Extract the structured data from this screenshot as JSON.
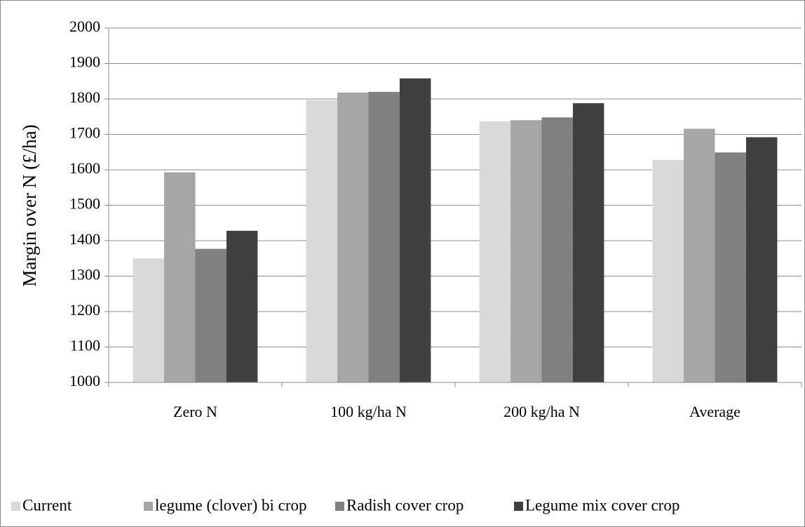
{
  "chart_data": {
    "type": "bar",
    "ylabel": "Margin over N (£/ha)",
    "categories": [
      "Zero N",
      "100 kg/ha N",
      "200 kg/ha N",
      "Average"
    ],
    "series": [
      {
        "name": "Current",
        "color": "#d9d9d9",
        "values": [
          1350,
          1797,
          1737,
          1628
        ]
      },
      {
        "name": "legume (clover) bi crop",
        "color": "#a6a6a6",
        "values": [
          1593,
          1818,
          1740,
          1716
        ]
      },
      {
        "name": "Radish cover crop",
        "color": "#808080",
        "values": [
          1377,
          1820,
          1748,
          1649
        ]
      },
      {
        "name": "Legume mix cover crop",
        "color": "#404040",
        "values": [
          1428,
          1858,
          1788,
          1692
        ]
      }
    ],
    "ylim": [
      1000,
      2000
    ],
    "yticks": [
      1000,
      1100,
      1200,
      1300,
      1400,
      1500,
      1600,
      1700,
      1800,
      1900,
      2000
    ],
    "grid": true,
    "legend": "bottom"
  }
}
